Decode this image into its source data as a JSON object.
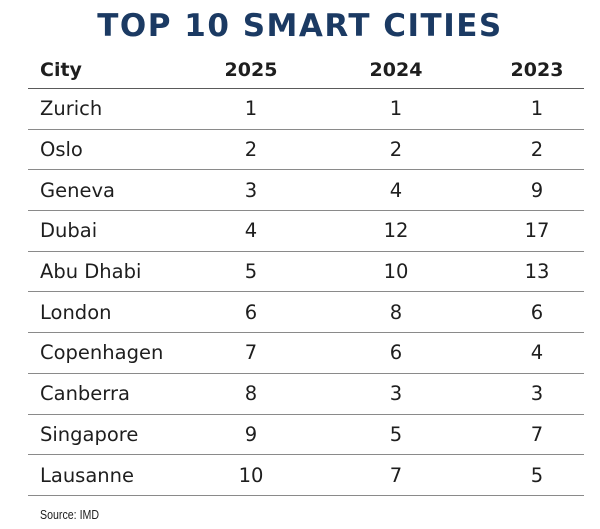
{
  "chart_data": {
    "type": "table",
    "title": "TOP 10 SMART CITIES",
    "columns": [
      "City",
      "2025",
      "2024",
      "2023"
    ],
    "rows": [
      {
        "city": "Zurich",
        "r2025": "1",
        "r2024": "1",
        "r2023": "1"
      },
      {
        "city": "Oslo",
        "r2025": "2",
        "r2024": "2",
        "r2023": "2"
      },
      {
        "city": "Geneva",
        "r2025": "3",
        "r2024": "4",
        "r2023": "9"
      },
      {
        "city": "Dubai",
        "r2025": "4",
        "r2024": "12",
        "r2023": "17"
      },
      {
        "city": "Abu Dhabi",
        "r2025": "5",
        "r2024": "10",
        "r2023": "13"
      },
      {
        "city": "London",
        "r2025": "6",
        "r2024": "8",
        "r2023": "6"
      },
      {
        "city": "Copenhagen",
        "r2025": "7",
        "r2024": "6",
        "r2023": "4"
      },
      {
        "city": "Canberra",
        "r2025": "8",
        "r2024": "3",
        "r2023": "3"
      },
      {
        "city": "Singapore",
        "r2025": "9",
        "r2024": "5",
        "r2023": "7"
      },
      {
        "city": "Lausanne",
        "r2025": "10",
        "r2024": "7",
        "r2023": "5"
      }
    ],
    "source": "Source: IMD"
  },
  "colors": {
    "title": "#1b3a63",
    "rule": "#8a8a8a"
  }
}
